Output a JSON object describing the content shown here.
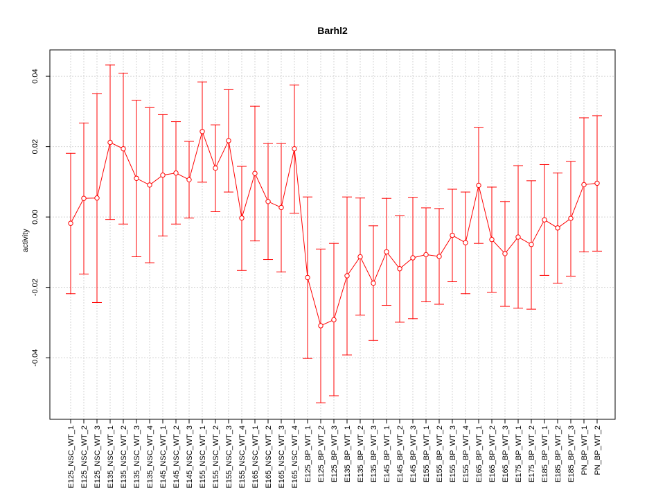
{
  "chart_data": {
    "type": "line",
    "title": "Barhl2",
    "xlabel": "",
    "ylabel": "activity",
    "ylim": [
      -0.0575,
      0.0475
    ],
    "yticks": [
      -0.04,
      -0.02,
      0.0,
      0.02,
      0.04
    ],
    "ytick_labels": [
      "-0.04",
      "-0.02",
      "0.00",
      "0.02",
      "0.04"
    ],
    "grid": true,
    "line_color": "#ff0000",
    "categories": [
      "E125_NSC_WT_1",
      "E125_NSC_WT_2",
      "E125_NSC_WT_3",
      "E135_NSC_WT_1",
      "E135_NSC_WT_2",
      "E135_NSC_WT_3",
      "E135_NSC_WT_4",
      "E145_NSC_WT_1",
      "E145_NSC_WT_2",
      "E145_NSC_WT_3",
      "E155_NSC_WT_1",
      "E155_NSC_WT_2",
      "E155_NSC_WT_3",
      "E155_NSC_WT_4",
      "E165_NSC_WT_1",
      "E165_NSC_WT_2",
      "E165_NSC_WT_3",
      "E165_NSC_WT_4",
      "E125_BP_WT_1",
      "E125_BP_WT_2",
      "E125_BP_WT_3",
      "E135_BP_WT_1",
      "E135_BP_WT_2",
      "E135_BP_WT_3",
      "E145_BP_WT_1",
      "E145_BP_WT_2",
      "E145_BP_WT_3",
      "E155_BP_WT_1",
      "E155_BP_WT_2",
      "E155_BP_WT_3",
      "E155_BP_WT_4",
      "E165_BP_WT_1",
      "E165_BP_WT_2",
      "E165_BP_WT_3",
      "E175_BP_WT_1",
      "E175_BP_WT_2",
      "E185_BP_WT_1",
      "E185_BP_WT_2",
      "E185_BP_WT_3",
      "PN_BP_WT_1",
      "PN_BP_WT_2"
    ],
    "values": [
      -0.0018,
      0.0053,
      0.0054,
      0.0212,
      0.0194,
      0.011,
      0.0091,
      0.0119,
      0.0125,
      0.0106,
      0.0243,
      0.0139,
      0.0217,
      -0.0003,
      0.0124,
      0.0044,
      0.0027,
      0.0194,
      -0.0172,
      -0.0309,
      -0.0292,
      -0.0167,
      -0.0113,
      -0.0188,
      -0.0099,
      -0.0147,
      -0.0116,
      -0.0107,
      -0.0112,
      -0.0052,
      -0.0073,
      0.009,
      -0.0064,
      -0.0104,
      -0.0057,
      -0.0078,
      -0.0008,
      -0.0031,
      -0.0004,
      0.0092,
      0.0096
    ],
    "upper": [
      0.0181,
      0.0267,
      0.0351,
      0.0432,
      0.0409,
      0.0332,
      0.0311,
      0.0291,
      0.0271,
      0.0215,
      0.0384,
      0.0262,
      0.0362,
      0.0144,
      0.0315,
      0.0209,
      0.0209,
      0.0375,
      0.0057,
      -0.0091,
      -0.0075,
      0.0057,
      0.0054,
      -0.0025,
      0.0053,
      0.0004,
      0.0056,
      0.0026,
      0.0024,
      0.0079,
      0.0071,
      0.0255,
      0.0085,
      0.0044,
      0.0146,
      0.0103,
      0.0149,
      0.0125,
      0.0158,
      0.0282,
      0.0288
    ],
    "lower": [
      -0.0218,
      -0.0162,
      -0.0243,
      -0.0007,
      -0.002,
      -0.0113,
      -0.013,
      -0.0054,
      -0.002,
      -0.0003,
      0.0099,
      0.0015,
      0.0071,
      -0.0152,
      -0.0068,
      -0.0121,
      -0.0156,
      0.0011,
      -0.0402,
      -0.0528,
      -0.0508,
      -0.0392,
      -0.0279,
      -0.0351,
      -0.0251,
      -0.0299,
      -0.0289,
      -0.0241,
      -0.0248,
      -0.0184,
      -0.0218,
      -0.0075,
      -0.0214,
      -0.0254,
      -0.0259,
      -0.0262,
      -0.0166,
      -0.0188,
      -0.0168,
      -0.0099,
      -0.0097
    ]
  }
}
